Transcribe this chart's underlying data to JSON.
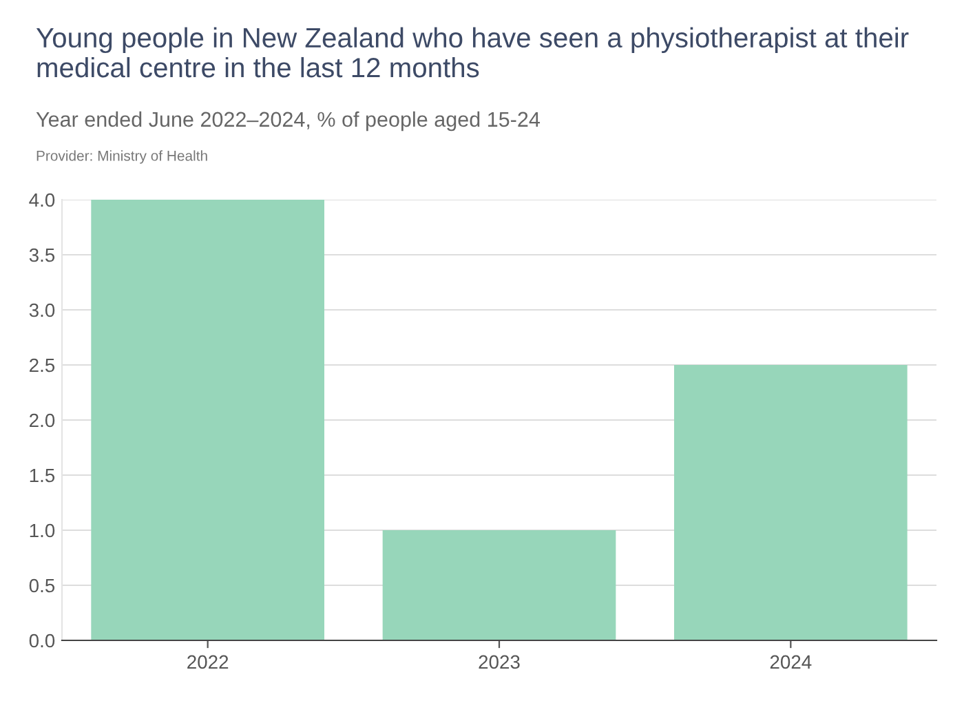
{
  "chart_data": {
    "type": "bar",
    "title": "Young people in New Zealand who have seen a physiotherapist at their medical centre in the last 12 months",
    "subtitle": "Year ended June 2022–2024, % of people aged 15-24",
    "annotations": [
      "Provider: Ministry of Health"
    ],
    "categories": [
      "2022",
      "2023",
      "2024"
    ],
    "values": [
      4.0,
      1.0,
      2.5
    ],
    "color": "#97d6ba",
    "ylim": [
      0,
      4
    ],
    "yticks": [
      {
        "value": 0,
        "label": "0.0"
      },
      0.5,
      {
        "value": 1,
        "label": "1.0"
      },
      1.5,
      {
        "value": 2,
        "label": "2.0"
      },
      2.5,
      {
        "value": 3,
        "label": "3.0"
      },
      3.5,
      {
        "value": 4,
        "label": "4.0"
      }
    ],
    "grid": "y"
  }
}
